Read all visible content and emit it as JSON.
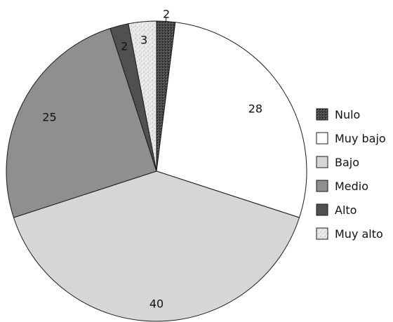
{
  "chart_data": {
    "type": "pie",
    "categories": [
      "Nulo",
      "Muy bajo",
      "Bajo",
      "Medio",
      "Alto",
      "Muy alto"
    ],
    "values": [
      2,
      28,
      40,
      25,
      2,
      3
    ],
    "data_labels": [
      "2",
      "28",
      "40",
      "25",
      "2",
      "3"
    ],
    "legend": {
      "position": "right",
      "entries": [
        "Nulo",
        "Muy bajo",
        "Bajo",
        "Medio",
        "Alto",
        "Muy alto"
      ]
    },
    "start": "12 o'clock, clockwise"
  },
  "colors": {
    "Nulo": "#555555",
    "Muy bajo": "#ffffff",
    "Bajo": "#d6d6d6",
    "Medio": "#8f8f8f",
    "Alto": "#505050",
    "Muy alto": "#e8e8e8"
  }
}
